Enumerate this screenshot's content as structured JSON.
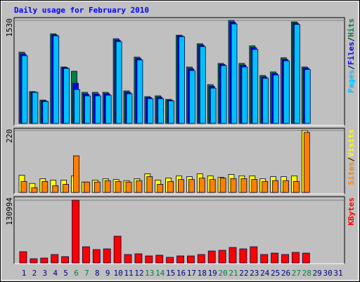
{
  "title": "Daily usage for February 2010",
  "legend_separator": "/",
  "chart_data": [
    {
      "type": "bar",
      "ylim": [
        0,
        1530
      ],
      "yticks": [
        1530
      ],
      "grid": true,
      "series": [
        {
          "name": "Hits",
          "color": "#008040",
          "values": [
            1058,
            472,
            346,
            1331,
            838,
            775,
            461,
            461,
            461,
            1258,
            482,
            985,
            398,
            409,
            356,
            1310,
            838,
            1184,
            576,
            891,
            1530,
            891,
            1153,
            712,
            765,
            975,
            1509,
            838,
            null,
            null,
            null
          ]
        },
        {
          "name": "Files",
          "color": "#0000ff",
          "values": [
            1030,
            466,
            335,
            1315,
            827,
            597,
            435,
            435,
            440,
            1237,
            461,
            964,
            382,
            388,
            345,
            1300,
            812,
            1163,
            550,
            875,
            1504,
            864,
            1125,
            690,
            740,
            950,
            1490,
            820,
            null,
            null,
            null
          ]
        },
        {
          "name": "Pages",
          "color": "#00c0ff",
          "values": [
            1006,
            461,
            325,
            1300,
            817,
            503,
            409,
            409,
            419,
            1216,
            440,
            943,
            367,
            367,
            335,
            1289,
            786,
            1142,
            524,
            859,
            1478,
            838,
            1100,
            670,
            720,
            930,
            1470,
            800,
            null,
            null,
            null
          ]
        }
      ]
    },
    {
      "type": "bar",
      "ylim": [
        0,
        220
      ],
      "yticks": [
        220
      ],
      "grid": true,
      "series": [
        {
          "name": "Visits",
          "color": "#ffff00",
          "values": [
            61,
            32,
            49,
            44,
            44,
            59,
            37,
            44,
            49,
            46,
            42,
            49,
            66,
            44,
            51,
            59,
            56,
            66,
            59,
            54,
            64,
            59,
            59,
            49,
            56,
            56,
            59,
            220,
            null,
            null,
            null
          ]
        },
        {
          "name": "Sites",
          "color": "#ff8000",
          "values": [
            39,
            17,
            39,
            24,
            29,
            130,
            37,
            37,
            42,
            39,
            37,
            42,
            56,
            29,
            39,
            46,
            46,
            51,
            46,
            51,
            49,
            49,
            46,
            39,
            42,
            42,
            39,
            213,
            null,
            null,
            null
          ]
        }
      ]
    },
    {
      "type": "bar",
      "ylim": [
        0,
        130994
      ],
      "yticks": [
        130994
      ],
      "grid": true,
      "categories": [
        "1",
        "2",
        "3",
        "4",
        "5",
        "6",
        "7",
        "8",
        "9",
        "10",
        "11",
        "12",
        "13",
        "14",
        "15",
        "16",
        "17",
        "18",
        "19",
        "20",
        "21",
        "22",
        "23",
        "24",
        "25",
        "26",
        "27",
        "28",
        "29",
        "30",
        "31"
      ],
      "category_colors": [
        "#000080",
        "#000080",
        "#000080",
        "#000080",
        "#000080",
        "#008040",
        "#008040",
        "#000080",
        "#000080",
        "#000080",
        "#000080",
        "#000080",
        "#008040",
        "#008040",
        "#000080",
        "#000080",
        "#000080",
        "#000080",
        "#000080",
        "#008040",
        "#008040",
        "#000080",
        "#000080",
        "#000080",
        "#000080",
        "#000080",
        "#008040",
        "#008040",
        "#000080",
        "#000080",
        "#000080"
      ],
      "series": [
        {
          "name": "KBytes",
          "color": "#ff0000",
          "values": [
            23550,
            8830,
            10300,
            17660,
            13250,
            130994,
            33850,
            27960,
            29430,
            55930,
            17660,
            19130,
            14720,
            16190,
            11780,
            14720,
            14720,
            17660,
            25020,
            26490,
            32380,
            29430,
            33850,
            17660,
            20600,
            17660,
            22080,
            20600,
            null,
            null,
            null
          ]
        }
      ]
    }
  ]
}
